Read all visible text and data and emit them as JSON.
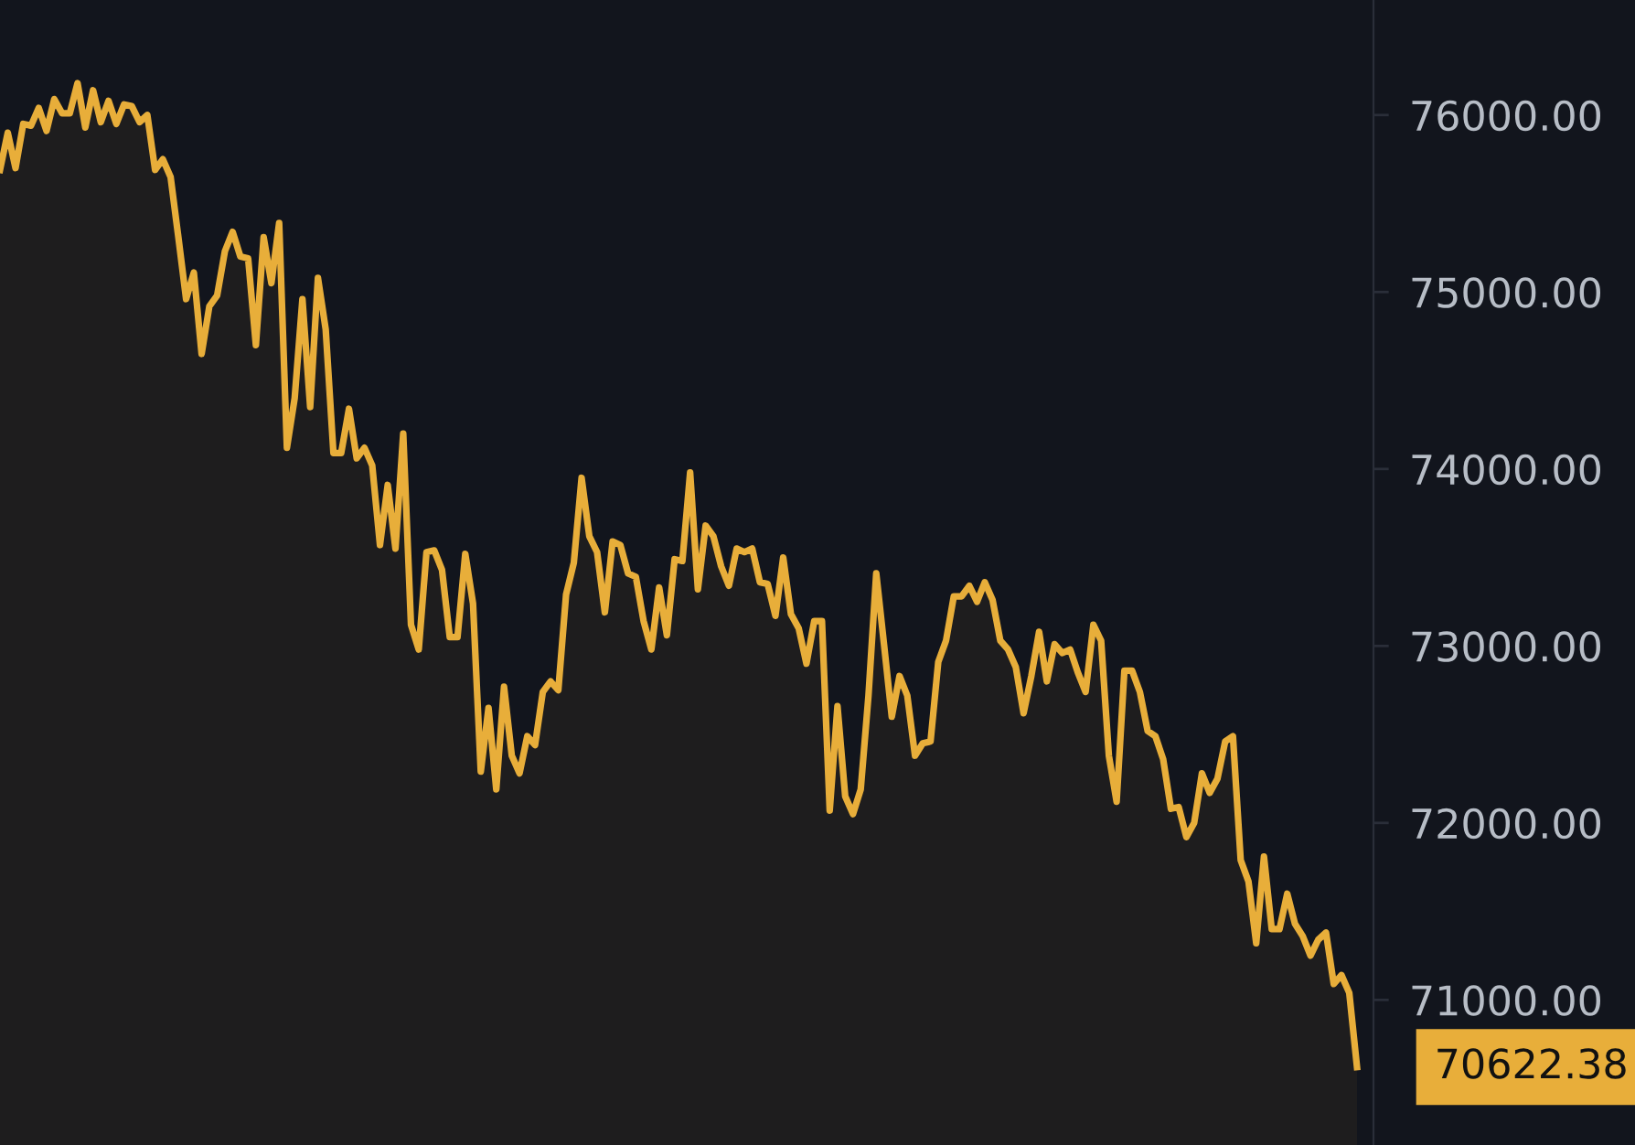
{
  "chart_data": {
    "type": "area",
    "categories": [
      null,
      null,
      null,
      null,
      null,
      null,
      null,
      null,
      null,
      null,
      null,
      null,
      null,
      null,
      null,
      null,
      null,
      null,
      null,
      null,
      null,
      null,
      null,
      null,
      null,
      null,
      null,
      null,
      null,
      null,
      null,
      null,
      null,
      null,
      null,
      null,
      null,
      null,
      null,
      null,
      null,
      null,
      null,
      null,
      null,
      null,
      null,
      null,
      null,
      null,
      null,
      null,
      null,
      null,
      null,
      null,
      null,
      null,
      null,
      null,
      null,
      null,
      null,
      null,
      null,
      null,
      null,
      null,
      null,
      null,
      null,
      null,
      null,
      null,
      null,
      null,
      null,
      null,
      null,
      null,
      null,
      null,
      null,
      null,
      null,
      null,
      null,
      null,
      null,
      null,
      null,
      null,
      null,
      null,
      null,
      null,
      null,
      null,
      null,
      null,
      null,
      null,
      null,
      null,
      null,
      null,
      null,
      null,
      null,
      null,
      null,
      null,
      null,
      null,
      null,
      null,
      null,
      null,
      null,
      null,
      null,
      null,
      null,
      null,
      null,
      null,
      null,
      null,
      null,
      null,
      null,
      null,
      null,
      null,
      null,
      null,
      null,
      null,
      null,
      null,
      null,
      null,
      null,
      null,
      null,
      null,
      null,
      null,
      null,
      null,
      null,
      null,
      null,
      null,
      null,
      null,
      null,
      null,
      null,
      null,
      null,
      null,
      null,
      null,
      null,
      null,
      null,
      null,
      null,
      null,
      null,
      null,
      null,
      null,
      null,
      null
    ],
    "series": [
      {
        "color": "#e8ae3a",
        "values": [
          75690,
          75900,
          75700,
          75950,
          75940,
          76040,
          75910,
          76090,
          76010,
          76010,
          76180,
          75930,
          76140,
          75960,
          76080,
          75950,
          76060,
          76050,
          75960,
          76000,
          75690,
          75750,
          75650,
          75310,
          74960,
          75110,
          74650,
          74920,
          74980,
          75230,
          75340,
          75200,
          75190,
          74700,
          75310,
          75050,
          75390,
          74120,
          74400,
          74960,
          74350,
          75080,
          74790,
          74090,
          74090,
          74340,
          74060,
          74120,
          74020,
          73570,
          73910,
          73550,
          74200,
          73120,
          72980,
          73530,
          73540,
          73430,
          73050,
          73050,
          73520,
          73240,
          72290,
          72650,
          72190,
          72770,
          72380,
          72280,
          72490,
          72440,
          72740,
          72800,
          72750,
          73290,
          73470,
          73950,
          73620,
          73530,
          73190,
          73590,
          73570,
          73410,
          73390,
          73140,
          72980,
          73330,
          73060,
          73490,
          73480,
          73980,
          73320,
          73680,
          73620,
          73450,
          73340,
          73550,
          73530,
          73550,
          73360,
          73350,
          73170,
          73500,
          73180,
          73100,
          72900,
          73140,
          73140,
          72070,
          72660,
          72150,
          72050,
          72190,
          72720,
          73410,
          73010,
          72600,
          72830,
          72720,
          72380,
          72450,
          72460,
          72910,
          73030,
          73280,
          73280,
          73340,
          73250,
          73360,
          73260,
          73030,
          72980,
          72880,
          72620,
          72830,
          73080,
          72800,
          73010,
          72960,
          72980,
          72850,
          72740,
          73120,
          73030,
          72380,
          72120,
          72860,
          72860,
          72740,
          72520,
          72490,
          72360,
          72080,
          72090,
          71920,
          72000,
          72280,
          72170,
          72250,
          72460,
          72490,
          71790,
          71670,
          71320,
          71810,
          71400,
          71400,
          71600,
          71430,
          71360,
          71250,
          71340,
          71380,
          71090,
          71140,
          71040,
          70620
        ]
      }
    ],
    "ylim": [
      70180,
      76650
    ],
    "yticks": [
      {
        "value": 71000,
        "label": "71000.00"
      },
      {
        "value": 72000,
        "label": "72000.00"
      },
      {
        "value": 73000,
        "label": "73000.00"
      },
      {
        "value": 74000,
        "label": "74000.00"
      },
      {
        "value": 75000,
        "label": "75000.00"
      },
      {
        "value": 76000,
        "label": "76000.00"
      }
    ],
    "tick_labels": "y",
    "grid": false,
    "annotations": [
      "70622.38"
    ]
  }
}
